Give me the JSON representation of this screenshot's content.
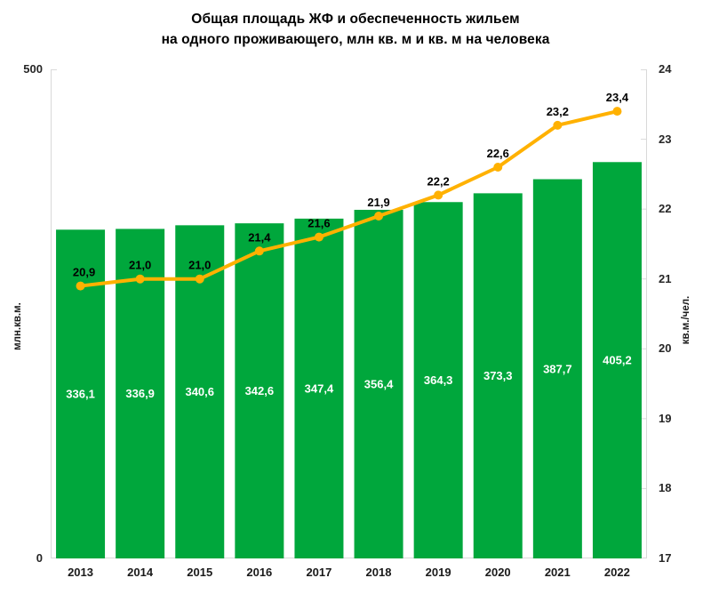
{
  "title": {
    "line1": "Общая площадь ЖФ и обеспеченность жильем",
    "line2": "на одного проживающего, млн кв. м и кв. м на человека"
  },
  "chart_data": {
    "type": "bar",
    "subtype": "bar+line combo, dual axis",
    "categories": [
      "2013",
      "2014",
      "2015",
      "2016",
      "2017",
      "2018",
      "2019",
      "2020",
      "2021",
      "2022"
    ],
    "series": [
      {
        "id": "bars-total-area",
        "type": "bar",
        "axis": "left",
        "values": [
          336.1,
          336.9,
          340.6,
          342.6,
          347.4,
          356.4,
          364.3,
          373.3,
          387.7,
          405.2
        ],
        "labels": [
          "336,1",
          "336,9",
          "340,6",
          "342,6",
          "347,4",
          "356,4",
          "364,3",
          "373,3",
          "387,7",
          "405,2"
        ],
        "color": "#00A73C",
        "label_color": "#FFFFFF"
      },
      {
        "id": "line-per-person",
        "type": "line",
        "axis": "right",
        "values": [
          20.9,
          21.0,
          21.0,
          21.4,
          21.6,
          21.9,
          22.2,
          22.6,
          23.2,
          23.4
        ],
        "labels": [
          "20,9",
          "21,0",
          "21,0",
          "21,4",
          "21,6",
          "21,9",
          "22,2",
          "22,6",
          "23,2",
          "23,4"
        ],
        "color": "#FFB100",
        "label_color": "#000000"
      }
    ],
    "left_axis": {
      "title": "млн.кв.м.",
      "min": 0,
      "max": 500,
      "tick_labels": [
        "500",
        "0"
      ]
    },
    "right_axis": {
      "title": "кв.м./чел.",
      "min": 17,
      "max": 24,
      "tick_labels": [
        "24",
        "23",
        "22",
        "21",
        "20",
        "19",
        "18",
        "17"
      ]
    },
    "grid": false,
    "legend": "none",
    "background": "#FFFFFF",
    "axis_line_color": "#D9D9D9"
  }
}
